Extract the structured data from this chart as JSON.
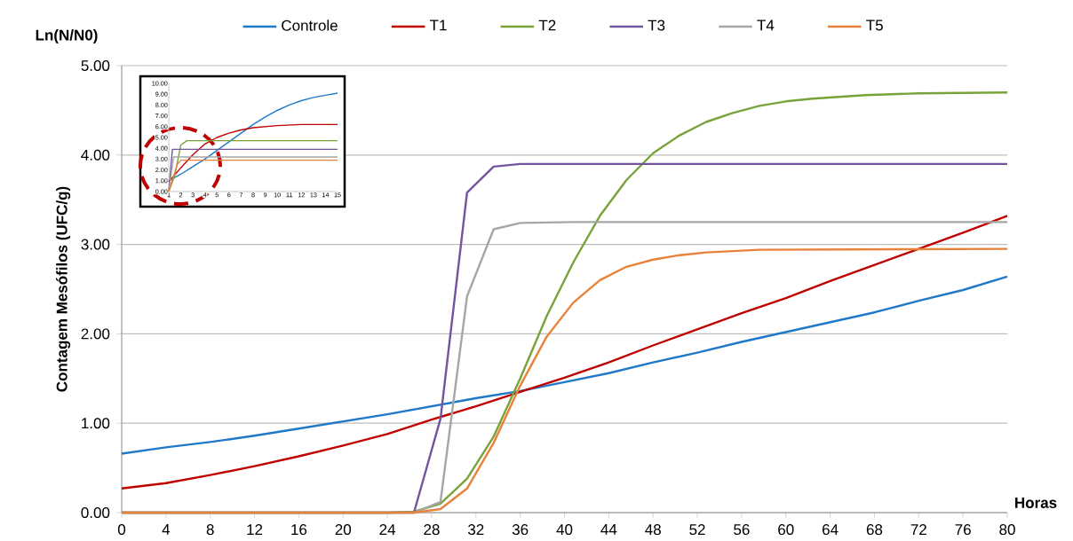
{
  "chart_data": [
    {
      "type": "line",
      "xlabel": "Horas",
      "ylabel": "Contagem Mesófilos (UFC/g)",
      "annotations": [
        "Ln(N/N0)"
      ],
      "xlim": [
        0,
        80
      ],
      "xticks": [
        0,
        4,
        8,
        12,
        16,
        20,
        24,
        28,
        32,
        36,
        40,
        44,
        48,
        52,
        56,
        60,
        64,
        68,
        72,
        76,
        80
      ],
      "ylim": [
        0,
        5
      ],
      "yticks": [
        {
          "value": 0,
          "label": "0.00"
        },
        {
          "value": 1,
          "label": "1.00"
        },
        {
          "value": 2,
          "label": "2.00"
        },
        {
          "value": 3,
          "label": "3.00"
        },
        {
          "value": 4,
          "label": "4.00"
        },
        {
          "value": 5,
          "label": "5.00"
        }
      ],
      "grid": "y",
      "legend": "top",
      "marker": "none",
      "line_style": "solid",
      "series": [
        {
          "name": "Controle",
          "color": "#1f78c8",
          "x": [
            0,
            4,
            8,
            12,
            16,
            20,
            24,
            28,
            32,
            36,
            40,
            44,
            48,
            52,
            56,
            60,
            64,
            68,
            72,
            76,
            80
          ],
          "values": [
            0.66,
            0.73,
            0.79,
            0.86,
            0.94,
            1.02,
            1.1,
            1.19,
            1.28,
            1.36,
            1.46,
            1.56,
            1.68,
            1.79,
            1.91,
            2.02,
            2.13,
            2.24,
            2.37,
            2.49,
            2.64
          ]
        },
        {
          "name": "T1",
          "color": "#c00000",
          "x": [
            0,
            4,
            8,
            12,
            16,
            20,
            24,
            28,
            32,
            36,
            40,
            44,
            48,
            52,
            56,
            60,
            64,
            68,
            72,
            76,
            80
          ],
          "values": [
            0.27,
            0.33,
            0.42,
            0.52,
            0.63,
            0.75,
            0.88,
            1.04,
            1.19,
            1.35,
            1.51,
            1.68,
            1.87,
            2.05,
            2.23,
            2.4,
            2.59,
            2.77,
            2.95,
            3.13,
            3.32
          ]
        },
        {
          "name": "T2",
          "color": "#77a33a",
          "x": [
            0,
            24,
            26.4,
            28.8,
            31.2,
            33.6,
            36,
            38.4,
            40.8,
            43.2,
            45.6,
            48,
            50.4,
            52.8,
            55.2,
            57.6,
            60,
            62.4,
            64.8,
            67.2,
            72,
            80
          ],
          "values": [
            0,
            0,
            0.01,
            0.1,
            0.38,
            0.85,
            1.5,
            2.2,
            2.8,
            3.32,
            3.72,
            4.02,
            4.22,
            4.37,
            4.47,
            4.55,
            4.6,
            4.63,
            4.65,
            4.67,
            4.69,
            4.7
          ]
        },
        {
          "name": "T3",
          "color": "#7254a0",
          "x": [
            0,
            24,
            26.4,
            28.8,
            31.2,
            33.6,
            36,
            80
          ],
          "values": [
            0,
            0,
            0,
            1.05,
            3.58,
            3.87,
            3.9,
            3.9
          ]
        },
        {
          "name": "T4",
          "color": "#a6a6a6",
          "x": [
            0,
            24,
            26.4,
            28.8,
            31.2,
            33.6,
            36,
            40.8,
            80
          ],
          "values": [
            0,
            0,
            0,
            0.12,
            2.42,
            3.17,
            3.24,
            3.25,
            3.25
          ]
        },
        {
          "name": "T5",
          "color": "#e8823a",
          "x": [
            0,
            24,
            26.4,
            28.8,
            31.2,
            33.6,
            36,
            38.4,
            40.8,
            43.2,
            45.6,
            48,
            50.4,
            52.8,
            57.6,
            80
          ],
          "values": [
            0,
            0,
            0,
            0.04,
            0.27,
            0.78,
            1.42,
            1.97,
            2.35,
            2.6,
            2.75,
            2.83,
            2.88,
            2.91,
            2.94,
            2.95
          ]
        }
      ]
    },
    {
      "type": "line",
      "xlim": [
        1,
        15
      ],
      "xticks": [
        1,
        2,
        3,
        4,
        5,
        6,
        7,
        8,
        9,
        10,
        11,
        12,
        13,
        14,
        15
      ],
      "ylim": [
        0,
        10
      ],
      "yticks": [
        {
          "value": 0,
          "label": "0.00"
        },
        {
          "value": 1,
          "label": "1.00"
        },
        {
          "value": 2,
          "label": "2.00"
        },
        {
          "value": 3,
          "label": "3.00"
        },
        {
          "value": 4,
          "label": "4.00"
        },
        {
          "value": 5,
          "label": "5.00"
        },
        {
          "value": 6,
          "label": "6.00"
        },
        {
          "value": 7,
          "label": "7.00"
        },
        {
          "value": 8,
          "label": "8.00"
        },
        {
          "value": 9,
          "label": "9.00"
        },
        {
          "value": 10,
          "label": "10.00"
        }
      ],
      "marker": "none",
      "line_style": "solid",
      "series": [
        {
          "color": "#1f78c8",
          "x": [
            1,
            2,
            3,
            4,
            5,
            6,
            7,
            8,
            9,
            10,
            11,
            12,
            13,
            14,
            15
          ],
          "values": [
            1.0,
            1.6,
            2.3,
            3.0,
            3.8,
            4.6,
            5.4,
            6.2,
            6.9,
            7.5,
            8.0,
            8.4,
            8.7,
            8.9,
            9.1
          ]
        },
        {
          "color": "#c00000",
          "x": [
            1,
            2,
            3,
            4,
            5,
            6,
            7,
            8,
            10,
            12,
            15
          ],
          "values": [
            0.9,
            2.2,
            3.4,
            4.4,
            5.0,
            5.4,
            5.7,
            5.9,
            6.1,
            6.2,
            6.2
          ]
        },
        {
          "color": "#77a33a",
          "x": [
            1,
            1.5,
            2,
            2.5,
            3,
            15
          ],
          "values": [
            0,
            1.5,
            4.3,
            4.7,
            4.7,
            4.7
          ]
        },
        {
          "color": "#7254a0",
          "x": [
            1,
            1.3,
            15
          ],
          "values": [
            0,
            3.9,
            3.9
          ]
        },
        {
          "color": "#a6a6a6",
          "x": [
            1,
            1.4,
            15
          ],
          "values": [
            0,
            3.2,
            3.2
          ]
        },
        {
          "color": "#e8823a",
          "x": [
            1,
            1.7,
            2,
            2.5,
            15
          ],
          "values": [
            0,
            2.5,
            2.9,
            2.9,
            2.9
          ]
        }
      ]
    }
  ]
}
